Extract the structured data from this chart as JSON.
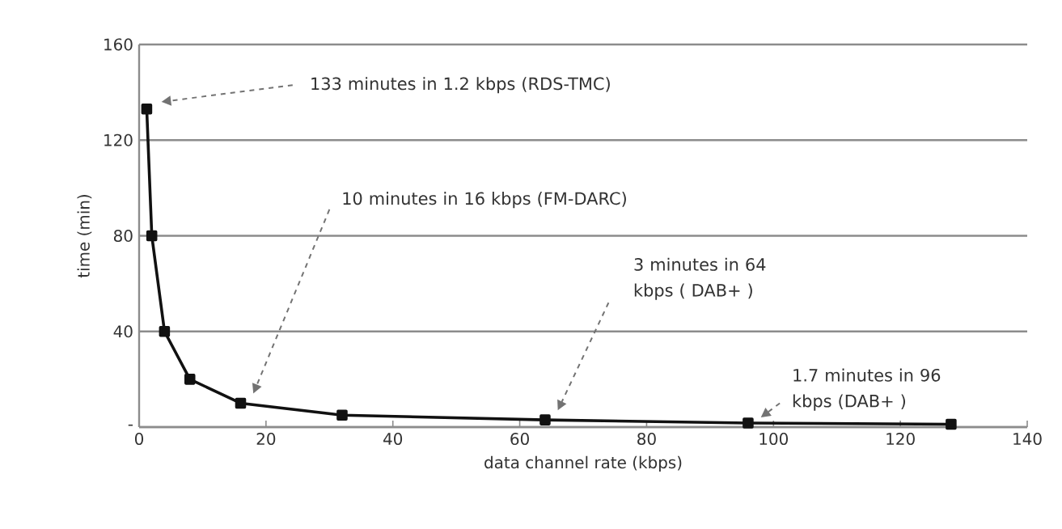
{
  "chart_data": {
    "type": "line",
    "xlabel": "data channel rate (kbps)",
    "ylabel": "time (min)",
    "x": [
      1.2,
      2,
      4,
      8,
      16,
      32,
      64,
      96,
      128
    ],
    "series": [
      {
        "color": "#111111",
        "values": [
          133,
          80,
          40,
          20,
          10,
          5,
          3,
          1.7,
          1.2
        ]
      }
    ],
    "xlim": [
      0,
      140
    ],
    "xticks": [
      0,
      20,
      40,
      60,
      80,
      100,
      120,
      140
    ],
    "ylim": [
      0,
      160
    ],
    "yticks": [
      {
        "value": 0,
        "label": "-"
      },
      40,
      80,
      120,
      160
    ],
    "grid": "y",
    "marker": "square",
    "line_style": "solid",
    "annotations": [
      "133 minutes in 1.2 kbps (RDS-TMC)",
      "10 minutes in 16 kbps (FM-DARC)",
      "3 minutes in 64 kbps ( DAB+ )",
      "1.7 minutes in 96 kbps (DAB+ )"
    ]
  }
}
